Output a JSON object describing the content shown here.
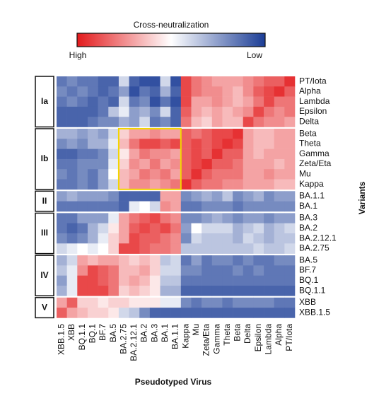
{
  "chart_data": {
    "type": "heatmap",
    "title": "Cross-neutralization",
    "colorbar": {
      "labels": [
        "High",
        "Low"
      ],
      "range": [
        0,
        1
      ],
      "colors": [
        "#e31a1c",
        "#ffffff",
        "#1b3d96"
      ]
    },
    "xlabel": "Pseudotyped Virus",
    "ylabel": "Variants",
    "columns": [
      "XBB.1.5",
      "XBB",
      "BQ.1.1",
      "BQ.1",
      "BF.7",
      "BA.5",
      "BA.2.75",
      "BA.2.12.1",
      "BA.2",
      "BA.3",
      "BA.1",
      "BA.1.1",
      "Kappa",
      "Mu",
      "Zeta/Eta",
      "Gamma",
      "Theta",
      "Beta",
      "Delta",
      "Epsilon",
      "Lambda",
      "Alpha",
      "PT/Iota"
    ],
    "groups": [
      {
        "label": "Ia",
        "rows": [
          "PT/Iota",
          "Alpha",
          "Lambda",
          "Epsilon",
          "Delta"
        ]
      },
      {
        "label": "Ib",
        "rows": [
          "Beta",
          "Theta",
          "Gamma",
          "Zeta/Eta",
          "Mu",
          "Kappa"
        ]
      },
      {
        "label": "II",
        "rows": [
          "BA.1.1",
          "BA.1"
        ]
      },
      {
        "label": "III",
        "rows": [
          "BA.3",
          "BA.2",
          "BA.2.12.1",
          "BA.2.75"
        ]
      },
      {
        "label": "IV",
        "rows": [
          "BA.5",
          "BF.7",
          "BQ.1",
          "BQ.1.1"
        ]
      },
      {
        "label": "V",
        "rows": [
          "XBB",
          "XBB.1.5"
        ]
      }
    ],
    "values": [
      [
        0.85,
        0.8,
        0.85,
        0.85,
        0.9,
        0.9,
        0.6,
        0.9,
        0.95,
        0.95,
        0.6,
        0.95,
        0.1,
        0.2,
        0.25,
        0.3,
        0.3,
        0.3,
        0.25,
        0.2,
        0.15,
        0.15,
        0.05
      ],
      [
        0.8,
        0.85,
        0.8,
        0.85,
        0.9,
        0.85,
        0.75,
        0.95,
        0.85,
        0.9,
        0.7,
        0.9,
        0.1,
        0.2,
        0.25,
        0.25,
        0.3,
        0.35,
        0.25,
        0.15,
        0.1,
        0.05,
        0.15
      ],
      [
        0.85,
        0.8,
        0.85,
        0.9,
        0.85,
        0.9,
        0.6,
        0.85,
        0.8,
        0.95,
        0.85,
        0.95,
        0.1,
        0.3,
        0.3,
        0.25,
        0.3,
        0.35,
        0.3,
        0.2,
        0.1,
        0.2,
        0.2
      ],
      [
        0.9,
        0.9,
        0.9,
        0.9,
        0.85,
        0.65,
        0.55,
        0.75,
        0.7,
        0.8,
        0.6,
        0.9,
        0.15,
        0.3,
        0.35,
        0.3,
        0.35,
        0.3,
        0.25,
        0.1,
        0.2,
        0.25,
        0.2
      ],
      [
        0.9,
        0.9,
        0.9,
        0.85,
        0.8,
        0.8,
        0.7,
        0.75,
        0.6,
        0.85,
        0.8,
        0.9,
        0.2,
        0.35,
        0.4,
        0.3,
        0.35,
        0.35,
        0.1,
        0.2,
        0.25,
        0.25,
        0.3
      ],
      [
        0.7,
        0.7,
        0.75,
        0.7,
        0.75,
        0.6,
        0.4,
        0.3,
        0.3,
        0.25,
        0.3,
        0.3,
        0.15,
        0.2,
        0.15,
        0.1,
        0.1,
        0.05,
        0.3,
        0.35,
        0.35,
        0.3,
        0.3
      ],
      [
        0.8,
        0.75,
        0.8,
        0.7,
        0.7,
        0.55,
        0.35,
        0.2,
        0.1,
        0.1,
        0.15,
        0.1,
        0.15,
        0.1,
        0.15,
        0.1,
        0.05,
        0.1,
        0.3,
        0.35,
        0.35,
        0.3,
        0.3
      ],
      [
        0.9,
        0.9,
        0.85,
        0.85,
        0.8,
        0.6,
        0.45,
        0.3,
        0.2,
        0.25,
        0.25,
        0.3,
        0.15,
        0.1,
        0.15,
        0.05,
        0.15,
        0.15,
        0.3,
        0.35,
        0.3,
        0.3,
        0.3
      ],
      [
        0.85,
        0.85,
        0.8,
        0.8,
        0.8,
        0.55,
        0.4,
        0.25,
        0.3,
        0.2,
        0.3,
        0.25,
        0.15,
        0.1,
        0.05,
        0.15,
        0.15,
        0.2,
        0.3,
        0.3,
        0.3,
        0.35,
        0.3
      ],
      [
        0.8,
        0.85,
        0.8,
        0.85,
        0.75,
        0.5,
        0.35,
        0.3,
        0.2,
        0.25,
        0.2,
        0.3,
        0.15,
        0.05,
        0.15,
        0.2,
        0.2,
        0.2,
        0.3,
        0.3,
        0.25,
        0.3,
        0.3
      ],
      [
        0.85,
        0.85,
        0.8,
        0.85,
        0.75,
        0.6,
        0.35,
        0.25,
        0.25,
        0.3,
        0.25,
        0.2,
        0.05,
        0.15,
        0.2,
        0.2,
        0.25,
        0.25,
        0.3,
        0.3,
        0.3,
        0.35,
        0.35
      ],
      [
        0.75,
        0.7,
        0.75,
        0.75,
        0.75,
        0.8,
        0.9,
        0.9,
        0.9,
        0.9,
        0.3,
        0.3,
        0.8,
        0.75,
        0.7,
        0.75,
        0.65,
        0.8,
        0.75,
        0.7,
        0.8,
        0.75,
        0.75
      ],
      [
        0.85,
        0.85,
        0.85,
        0.85,
        0.85,
        0.85,
        0.9,
        0.55,
        0.5,
        0.6,
        0.25,
        0.3,
        0.85,
        0.85,
        0.8,
        0.8,
        0.8,
        0.85,
        0.8,
        0.8,
        0.8,
        0.8,
        0.8
      ],
      [
        0.85,
        0.85,
        0.75,
        0.75,
        0.75,
        0.55,
        0.3,
        0.2,
        0.15,
        0.1,
        0.2,
        0.25,
        0.8,
        0.8,
        0.75,
        0.7,
        0.75,
        0.8,
        0.75,
        0.75,
        0.8,
        0.75,
        0.75
      ],
      [
        0.85,
        0.9,
        0.85,
        0.7,
        0.6,
        0.45,
        0.3,
        0.15,
        0.1,
        0.15,
        0.1,
        0.2,
        0.75,
        0.5,
        0.6,
        0.6,
        0.6,
        0.7,
        0.65,
        0.6,
        0.7,
        0.65,
        0.6
      ],
      [
        0.8,
        0.85,
        0.8,
        0.7,
        0.55,
        0.4,
        0.3,
        0.1,
        0.15,
        0.15,
        0.2,
        0.25,
        0.8,
        0.6,
        0.65,
        0.65,
        0.65,
        0.7,
        0.6,
        0.65,
        0.7,
        0.65,
        0.65
      ],
      [
        0.6,
        0.55,
        0.5,
        0.55,
        0.5,
        0.4,
        0.1,
        0.1,
        0.15,
        0.2,
        0.2,
        0.25,
        0.65,
        0.65,
        0.65,
        0.65,
        0.65,
        0.65,
        0.65,
        0.6,
        0.65,
        0.65,
        0.6
      ],
      [
        0.7,
        0.6,
        0.3,
        0.35,
        0.3,
        0.3,
        0.35,
        0.4,
        0.35,
        0.4,
        0.65,
        0.6,
        0.85,
        0.75,
        0.85,
        0.8,
        0.8,
        0.85,
        0.8,
        0.85,
        0.85,
        0.8,
        0.8
      ],
      [
        0.65,
        0.55,
        0.25,
        0.1,
        0.15,
        0.2,
        0.35,
        0.35,
        0.3,
        0.4,
        0.6,
        0.6,
        0.8,
        0.8,
        0.85,
        0.85,
        0.85,
        0.8,
        0.85,
        0.8,
        0.85,
        0.85,
        0.85
      ],
      [
        0.75,
        0.55,
        0.1,
        0.1,
        0.15,
        0.2,
        0.35,
        0.3,
        0.35,
        0.45,
        0.65,
        0.65,
        0.85,
        0.85,
        0.85,
        0.85,
        0.85,
        0.85,
        0.85,
        0.85,
        0.85,
        0.85,
        0.85
      ],
      [
        0.7,
        0.55,
        0.1,
        0.1,
        0.1,
        0.2,
        0.4,
        0.35,
        0.4,
        0.45,
        0.7,
        0.7,
        0.9,
        0.9,
        0.9,
        0.9,
        0.9,
        0.9,
        0.9,
        0.9,
        0.9,
        0.9,
        0.9
      ],
      [
        0.3,
        0.15,
        0.4,
        0.4,
        0.45,
        0.4,
        0.4,
        0.45,
        0.45,
        0.45,
        0.55,
        0.55,
        0.8,
        0.85,
        0.8,
        0.8,
        0.85,
        0.8,
        0.8,
        0.8,
        0.8,
        0.85,
        0.85
      ],
      [
        0.15,
        0.3,
        0.35,
        0.4,
        0.4,
        0.45,
        0.6,
        0.65,
        0.8,
        0.9,
        0.9,
        0.9,
        0.9,
        0.9,
        0.9,
        0.9,
        0.9,
        0.9,
        0.9,
        0.9,
        0.9,
        0.9,
        0.9
      ]
    ]
  }
}
